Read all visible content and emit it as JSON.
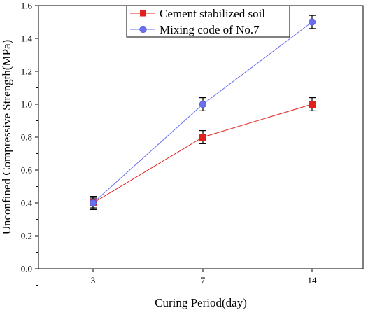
{
  "chart_data": {
    "type": "line",
    "xlabel": "Curing Period(day)",
    "ylabel": "Unconfined Compressive Strength(MPa)",
    "categories": [
      "3",
      "7",
      "14"
    ],
    "ylim": [
      0.0,
      1.6
    ],
    "yticks": [
      "0.0",
      "0.2",
      "0.4",
      "0.6",
      "0.8",
      "1.0",
      "1.2",
      "1.4",
      "1.6"
    ],
    "grid": false,
    "legend_position": "top-center",
    "series": [
      {
        "name": "Cement stabilized soil",
        "color": "#e0201b",
        "marker": "square",
        "values": [
          0.4,
          0.8,
          1.0
        ],
        "errors": [
          0.04,
          0.04,
          0.04
        ]
      },
      {
        "name": "Mixing code of No.7",
        "color": "#6a6ff0",
        "marker": "circle",
        "values": [
          0.4,
          1.0,
          1.5
        ],
        "errors": [
          0.03,
          0.04,
          0.04
        ]
      }
    ]
  }
}
